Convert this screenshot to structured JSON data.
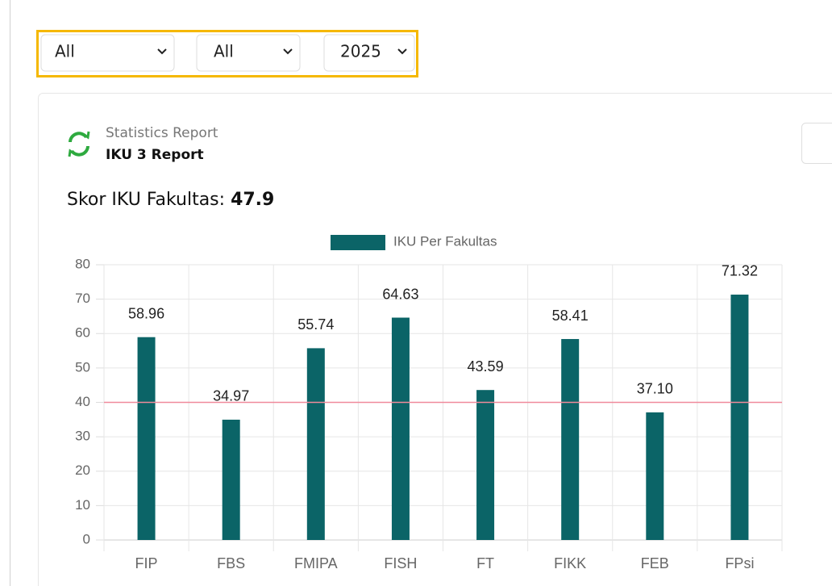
{
  "filters": [
    {
      "label": "All"
    },
    {
      "label": "All"
    },
    {
      "label": "2025"
    }
  ],
  "header": {
    "subtitle": "Statistics Report",
    "title": "IKU 3 Report"
  },
  "score": {
    "label": "Skor IKU Fakultas:",
    "value": 47.9
  },
  "chart_data": {
    "type": "bar",
    "legend": "IKU Per Fakultas",
    "color": "#0b6467",
    "categories": [
      "FIP",
      "FBS",
      "FMIPA",
      "FISH",
      "FT",
      "FIKK",
      "FEB",
      "FPsi"
    ],
    "values": [
      58.96,
      34.97,
      55.74,
      64.63,
      43.59,
      58.41,
      37.1,
      71.32
    ],
    "value_labels": [
      "58.96",
      "34.97",
      "55.74",
      "64.63",
      "43.59",
      "58.41",
      "37.10",
      "71.32"
    ],
    "ylim": [
      0,
      80
    ],
    "yticks": [
      0,
      10,
      20,
      30,
      40,
      50,
      60,
      70,
      80
    ],
    "grid": true,
    "reference_line": {
      "value": 40,
      "color": "#f08a9b"
    }
  }
}
